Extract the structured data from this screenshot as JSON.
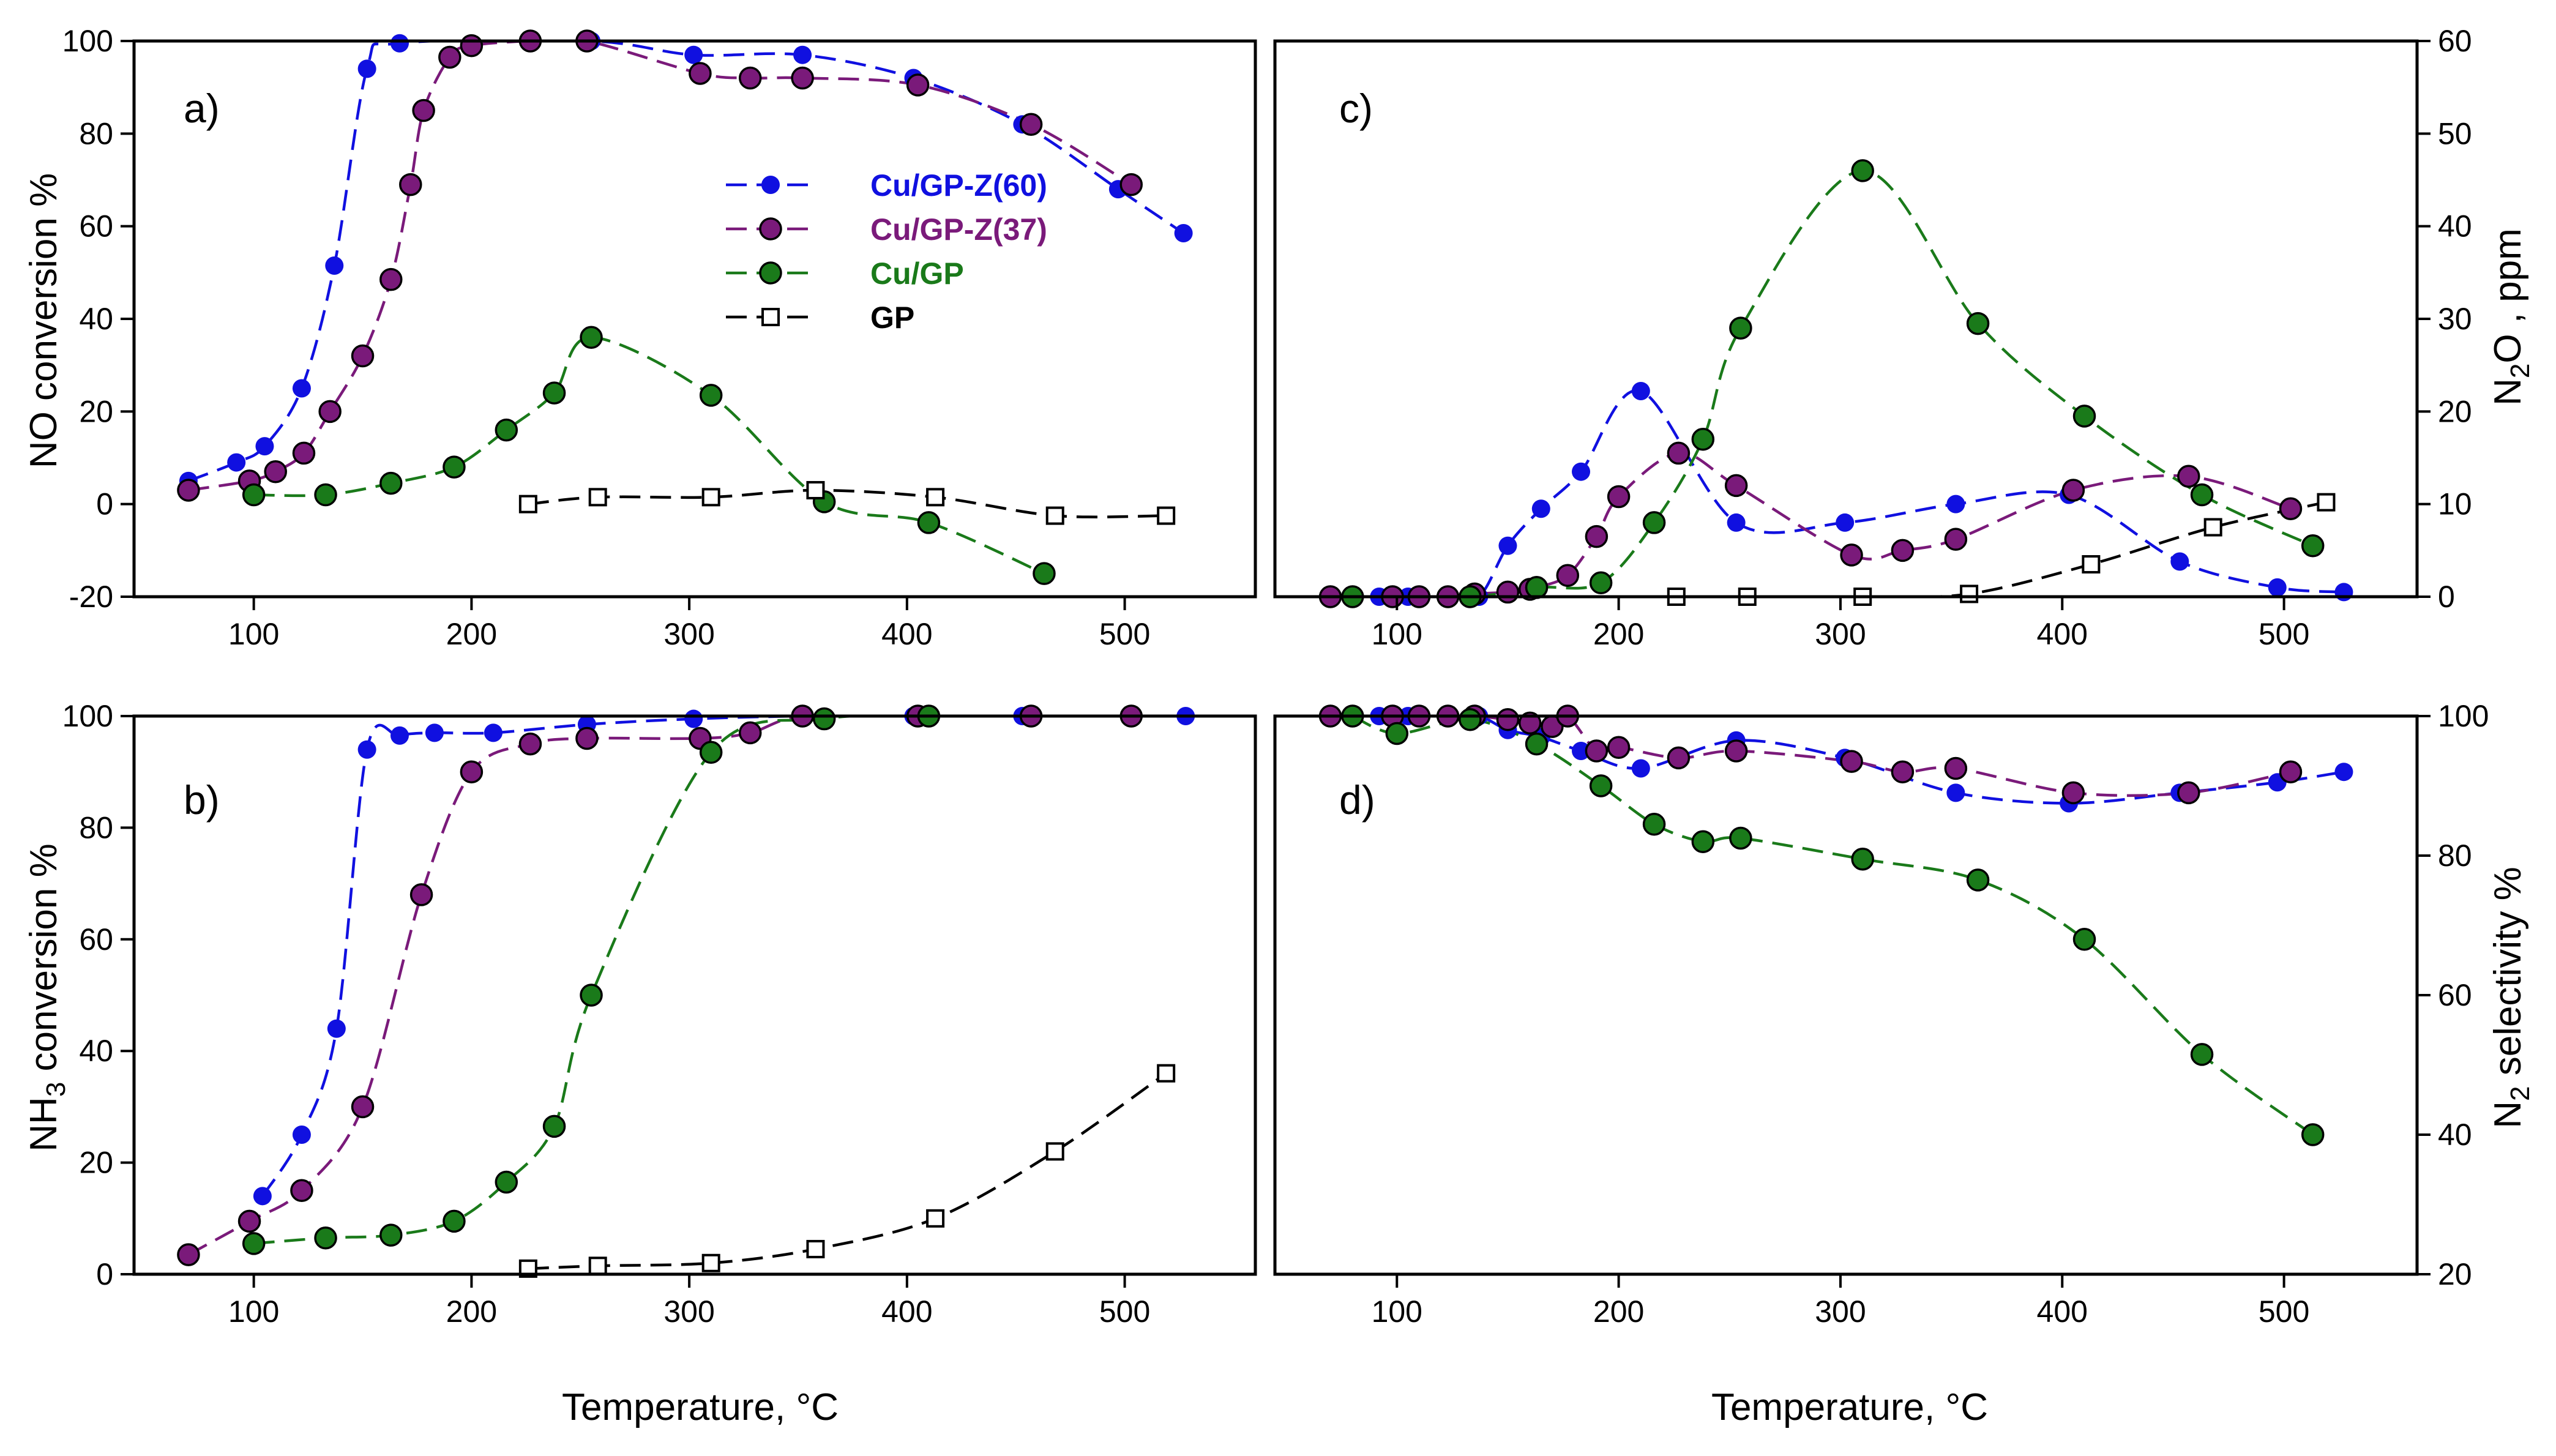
{
  "chart_data": [
    {
      "panel": "a)",
      "type": "line",
      "xlabel": "Temperature, °C",
      "ylabel": "NO conversion %",
      "xlim": [
        45,
        560
      ],
      "ylim": [
        -20,
        100
      ],
      "xticks": [
        100,
        200,
        300,
        400,
        500
      ],
      "yticks": [
        -20,
        0,
        20,
        40,
        60,
        80,
        100
      ],
      "legend_position": "upper-middle",
      "series": [
        {
          "name": "Cu/GP-Z(60)",
          "color": "#1010e0",
          "marker": "circle-small",
          "x": [
            70,
            92,
            105,
            122,
            137,
            152,
            167,
            255,
            302,
            352,
            403,
            453,
            497,
            527
          ],
          "y": [
            5,
            9,
            12.5,
            25,
            51.5,
            94,
            99.5,
            100,
            97,
            97,
            92,
            82,
            68,
            58.5
          ]
        },
        {
          "name": "Cu/GP-Z(37)",
          "color": "#7a1a7a",
          "marker": "circle",
          "x": [
            70,
            98,
            110,
            123,
            135,
            150,
            163,
            172,
            178,
            190,
            200,
            227,
            253,
            305,
            328,
            352,
            405,
            457,
            503
          ],
          "y": [
            3,
            5,
            7,
            11,
            20,
            32,
            48.5,
            69,
            85,
            96.5,
            99,
            100,
            100,
            93,
            92,
            92,
            90.5,
            82,
            69
          ]
        },
        {
          "name": "Cu/GP",
          "color": "#1a7a1a",
          "marker": "circle",
          "x": [
            100,
            133,
            163,
            192,
            216,
            238,
            255,
            310,
            362,
            410,
            463
          ],
          "y": [
            2,
            2,
            4.5,
            8,
            16,
            24,
            36,
            23.5,
            0.5,
            -4,
            -15
          ]
        },
        {
          "name": "GP",
          "color": "#000000",
          "marker": "square-open",
          "x": [
            226,
            258,
            310,
            358,
            413,
            468,
            519
          ],
          "y": [
            0,
            1.5,
            1.5,
            3,
            1.5,
            -2.5,
            -2.5
          ]
        }
      ]
    },
    {
      "panel": "b)",
      "type": "line",
      "xlabel": "Temperature, °C",
      "ylabel": "NH3 conversion %",
      "xlim": [
        45,
        560
      ],
      "ylim": [
        0,
        100
      ],
      "xticks": [
        100,
        200,
        300,
        400,
        500
      ],
      "yticks": [
        0,
        20,
        40,
        60,
        80,
        100
      ],
      "series": [
        {
          "name": "Cu/GP-Z(60)",
          "color": "#1010e0",
          "marker": "circle-small",
          "x": [
            104,
            122,
            138,
            152,
            167,
            183,
            210,
            253,
            302,
            352,
            403,
            453,
            502,
            528
          ],
          "y": [
            14,
            25,
            44,
            94,
            96.5,
            97,
            97,
            98.5,
            99.5,
            100,
            100,
            100,
            100,
            100
          ]
        },
        {
          "name": "Cu/GP-Z(37)",
          "color": "#7a1a7a",
          "marker": "circle",
          "x": [
            70,
            98,
            122,
            150,
            177,
            200,
            227,
            253,
            305,
            328,
            352,
            405,
            457,
            503
          ],
          "y": [
            3.5,
            9.5,
            15,
            30,
            68,
            90,
            95,
            96,
            96,
            97,
            100,
            100,
            100,
            100
          ]
        },
        {
          "name": "Cu/GP",
          "color": "#1a7a1a",
          "marker": "circle",
          "x": [
            100,
            133,
            163,
            192,
            216,
            238,
            255,
            310,
            362,
            410
          ],
          "y": [
            5.5,
            6.5,
            7,
            9.5,
            16.5,
            26.5,
            50,
            93.5,
            99.5,
            100
          ]
        },
        {
          "name": "GP",
          "color": "#000000",
          "marker": "square-open",
          "x": [
            226,
            258,
            310,
            358,
            413,
            468,
            519
          ],
          "y": [
            1,
            1.5,
            2,
            4.5,
            10,
            22,
            36
          ]
        }
      ]
    },
    {
      "panel": "c)",
      "type": "line",
      "xlabel": "Temperature, °C",
      "ylabel": "N2O , ppm",
      "xlim": [
        45,
        560
      ],
      "ylim": [
        0,
        60
      ],
      "xticks": [
        100,
        200,
        300,
        400,
        500
      ],
      "yticks": [
        0,
        10,
        20,
        30,
        40,
        50,
        60
      ],
      "series": [
        {
          "name": "Cu/GP-Z(60)",
          "color": "#1010e0",
          "marker": "circle-small",
          "x": [
            70,
            92,
            105,
            122,
            137,
            150,
            165,
            183,
            210,
            253,
            302,
            352,
            403,
            453,
            497,
            527
          ],
          "y": [
            0,
            0,
            0,
            0,
            0,
            5.5,
            9.5,
            13.5,
            22.2,
            8,
            8,
            10,
            11,
            3.8,
            1,
            0.5
          ]
        },
        {
          "name": "Cu/GP-Z(37)",
          "color": "#7a1a7a",
          "marker": "circle",
          "x": [
            70,
            98,
            110,
            123,
            135,
            150,
            160,
            163,
            177,
            190,
            200,
            227,
            253,
            305,
            328,
            352,
            405,
            457,
            503
          ],
          "y": [
            0,
            0,
            0,
            0,
            0.3,
            0.5,
            0.8,
            1,
            2.3,
            6.5,
            10.8,
            15.5,
            12,
            4.5,
            5,
            6.2,
            11.5,
            13,
            9.5
          ]
        },
        {
          "name": "Cu/GP",
          "color": "#1a7a1a",
          "marker": "circle",
          "x": [
            80,
            133,
            163,
            192,
            216,
            238,
            255,
            310,
            362,
            410,
            463,
            513
          ],
          "y": [
            0,
            0,
            1,
            1.5,
            8,
            17,
            29,
            46,
            29.5,
            19.5,
            11,
            5.5
          ]
        },
        {
          "name": "GP",
          "color": "#000000",
          "marker": "square-open",
          "x": [
            226,
            258,
            310,
            358,
            413,
            468,
            519
          ],
          "y": [
            0,
            0,
            0,
            0.3,
            3.5,
            7.5,
            10.2
          ]
        }
      ]
    },
    {
      "panel": "d)",
      "type": "line",
      "xlabel": "Temperature, °C",
      "ylabel": "N2 selectivity %",
      "xlim": [
        45,
        560
      ],
      "ylim": [
        20,
        100
      ],
      "xticks": [
        100,
        200,
        300,
        400,
        500
      ],
      "yticks": [
        20,
        40,
        60,
        80,
        100
      ],
      "series": [
        {
          "name": "Cu/GP-Z(60)",
          "color": "#1010e0",
          "marker": "circle-small",
          "x": [
            70,
            92,
            105,
            122,
            137,
            150,
            165,
            183,
            210,
            253,
            302,
            352,
            403,
            453,
            497,
            527
          ],
          "y": [
            100,
            100,
            100,
            100,
            100,
            98,
            97,
            95,
            92.5,
            96.5,
            94,
            89,
            87.5,
            89,
            90.5,
            92
          ]
        },
        {
          "name": "Cu/GP-Z(37)",
          "color": "#7a1a7a",
          "marker": "circle",
          "x": [
            70,
            98,
            110,
            123,
            135,
            150,
            160,
            170,
            177,
            190,
            200,
            227,
            253,
            305,
            328,
            352,
            405,
            457,
            503
          ],
          "y": [
            100,
            100,
            100,
            100,
            100,
            99.5,
            99,
            98.5,
            100,
            95,
            95.5,
            94,
            95,
            93.5,
            92,
            92.5,
            89,
            89,
            92
          ]
        },
        {
          "name": "Cu/GP",
          "color": "#1a7a1a",
          "marker": "circle",
          "x": [
            80,
            100,
            133,
            163,
            192,
            216,
            238,
            255,
            310,
            362,
            410,
            463,
            513
          ],
          "y": [
            100,
            97.5,
            99.5,
            96,
            90,
            84.5,
            82,
            82.5,
            79.5,
            76.5,
            68,
            51.5,
            40
          ]
        }
      ]
    }
  ]
}
